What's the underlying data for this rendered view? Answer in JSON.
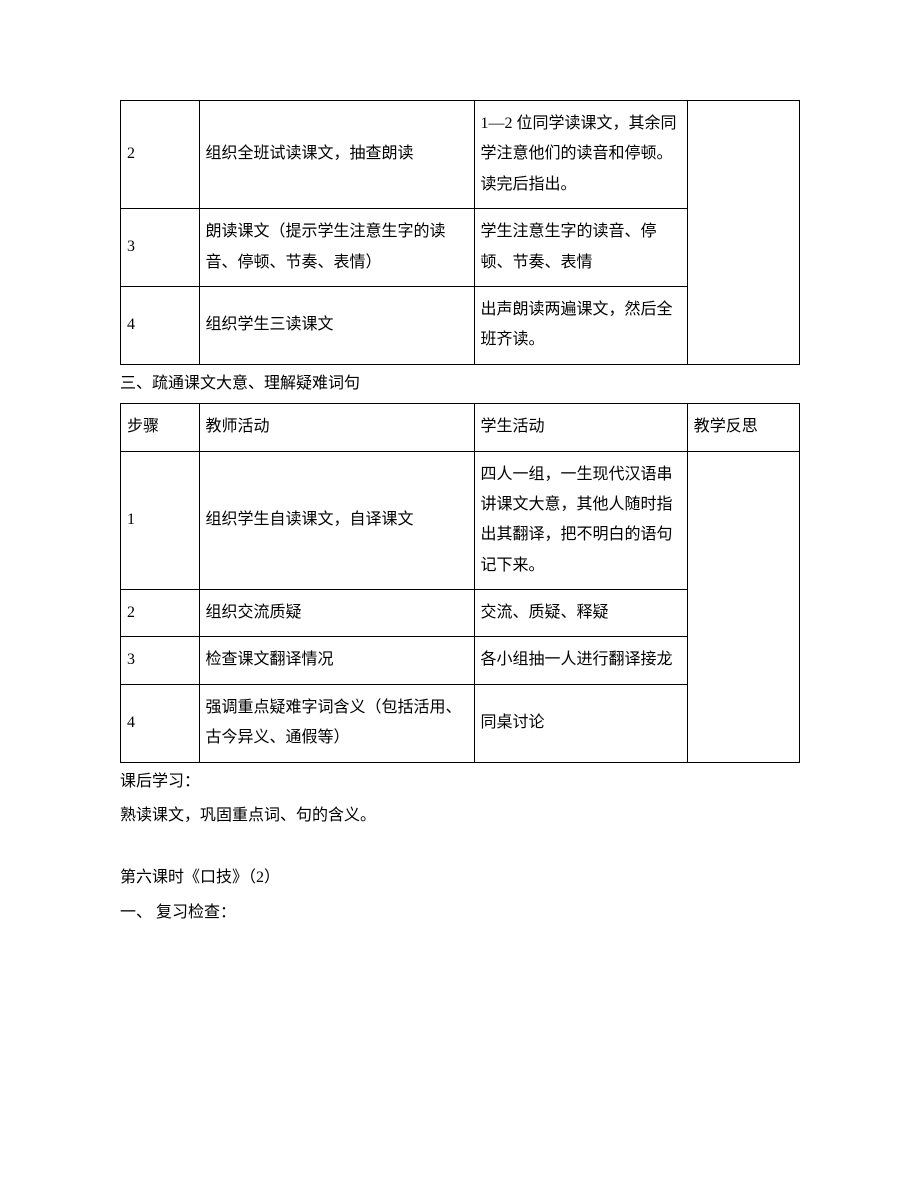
{
  "table1": {
    "rows": [
      {
        "step": "2",
        "teacher": "组织全班试读课文，抽查朗读",
        "student": "1—2 位同学读课文，其余同学注意他们的读音和停顿。读完后指出。"
      },
      {
        "step": "3",
        "teacher": "朗读课文（提示学生注意生字的读音、停顿、节奏、表情）",
        "student": "学生注意生字的读音、停顿、节奏、表情"
      },
      {
        "step": "4",
        "teacher": "组织学生三读课文",
        "student": "出声朗读两遍课文，然后全班齐读。"
      }
    ]
  },
  "section3_title": "三、疏通课文大意、理解疑难词句",
  "table2": {
    "headers": {
      "step": "步骤",
      "teacher": "教师活动",
      "student": "学生活动",
      "reflect": "教学反思"
    },
    "rows": [
      {
        "step": "1",
        "teacher": "组织学生自读课文，自译课文",
        "student": "四人一组，一生现代汉语串讲课文大意，其他人随时指出其翻译，把不明白的语句记下来。"
      },
      {
        "step": "2",
        "teacher": "组织交流质疑",
        "student": "交流、质疑、释疑"
      },
      {
        "step": "3",
        "teacher": "检查课文翻译情况",
        "student": "各小组抽一人进行翻译接龙"
      },
      {
        "step": "4",
        "teacher": "强调重点疑难字词含义（包括活用、古今异义、通假等）",
        "student": "同桌讨论"
      }
    ]
  },
  "post_study_label": "课后学习：",
  "post_study_text": "熟读课文，巩固重点词、句的含义。",
  "lesson6_title": "第六课时《口技》（2）",
  "lesson6_section1": "一、 复习检查："
}
